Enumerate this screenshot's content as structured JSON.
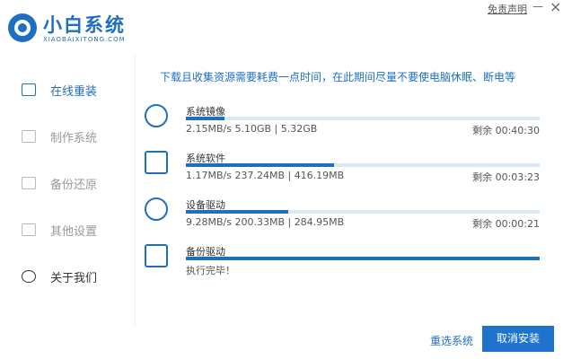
{
  "header": {
    "logo_title": "小白系统",
    "logo_subtitle": "XIAOBAIXITONG.COM",
    "disclaimer": "免责声明",
    "minimize": "—",
    "close": "×"
  },
  "sidebar": {
    "items": [
      {
        "label": "在线重装",
        "active": true
      },
      {
        "label": "制作系统",
        "active": false
      },
      {
        "label": "备份还原",
        "active": false
      },
      {
        "label": "其他设置",
        "active": false
      },
      {
        "label": "关于我们",
        "active": false
      }
    ]
  },
  "notice": "下载且收集资源需要耗费一点时间，在此期间尽量不要使电脑休眠、断电等",
  "downloads": [
    {
      "name": "系统镜像",
      "progress": 0.11,
      "info": "2.15MB/s 5.10GB | 5.32GB",
      "remaining": "剩余 00:40:30"
    },
    {
      "name": "系统软件",
      "progress": 0.42,
      "info": "1.17MB/s 237.24MB | 416.19MB",
      "remaining": "剩余 00:03:23"
    },
    {
      "name": "设备驱动",
      "progress": 0.29,
      "info": "9.28MB/s 200.33MB | 284.95MB",
      "remaining": "剩余 00:00:21"
    },
    {
      "name": "备份驱动",
      "progress": 1,
      "info": "执行完毕！"
    }
  ],
  "buttons": {
    "reselect": "重选系统",
    "cancel": "取消安装"
  }
}
